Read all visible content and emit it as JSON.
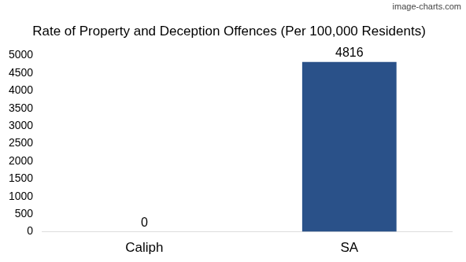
{
  "chart_data": {
    "type": "bar",
    "title": "Rate of Property and Deception Offences (Per 100,000 Residents)",
    "categories": [
      "Caliph",
      "SA"
    ],
    "values": [
      0,
      4816
    ],
    "color": "#2a5189",
    "ylim": [
      0,
      5000
    ],
    "yticks": [
      0,
      500,
      1000,
      1500,
      2000,
      2500,
      3000,
      3500,
      4000,
      4500,
      5000
    ],
    "grid": false,
    "data_labels": true,
    "annotations": [
      "image-charts.com"
    ]
  }
}
